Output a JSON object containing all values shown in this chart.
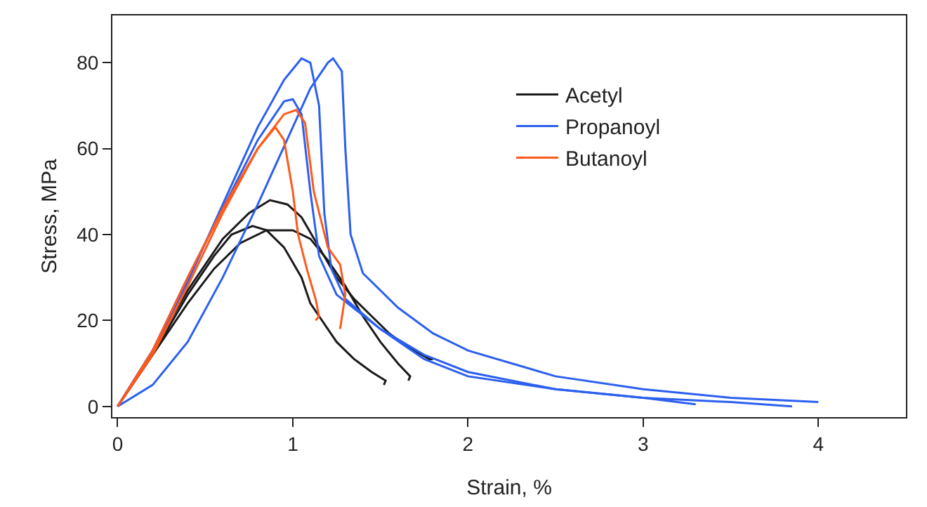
{
  "chart_data": {
    "type": "line",
    "xlabel": "Strain, %",
    "ylabel": "Stress, MPa",
    "xlim": [
      -0.03,
      4.5
    ],
    "ylim": [
      -2.5,
      91
    ],
    "xticks": [
      0,
      1,
      2,
      3,
      4
    ],
    "yticks": [
      0,
      20,
      40,
      60,
      80
    ],
    "grid": false,
    "legend": "top",
    "line_style": "solid",
    "marker": "none",
    "series": [
      {
        "name": "Acetyl",
        "color": "#1a1a1a",
        "x": [
          0,
          0.2,
          0.4,
          0.6,
          0.75,
          0.87,
          0.97,
          1.05,
          1.15,
          1.25,
          1.35,
          1.45,
          1.55,
          1.65,
          1.78,
          1.8
        ],
        "values": [
          0,
          13,
          27,
          39,
          45,
          48,
          47,
          44,
          37,
          30,
          25,
          21,
          17,
          14,
          11,
          11
        ]
      },
      {
        "color": "#1a1a1a",
        "x": [
          0,
          0.2,
          0.4,
          0.55,
          0.65,
          0.77,
          0.85,
          0.95,
          1.05,
          1.1,
          1.15,
          1.25,
          1.35,
          1.45,
          1.53,
          1.52
        ],
        "values": [
          0,
          12,
          26,
          35,
          40,
          42,
          41,
          37,
          30,
          24,
          21,
          15,
          11,
          8,
          6,
          5
        ]
      },
      {
        "color": "#1a1a1a",
        "x": [
          0,
          0.2,
          0.4,
          0.55,
          0.7,
          0.85,
          1.0,
          1.1,
          1.2,
          1.3,
          1.4,
          1.5,
          1.6,
          1.67,
          1.66
        ],
        "values": [
          0,
          12,
          24,
          32,
          38,
          41,
          41,
          39,
          34,
          28,
          21,
          15,
          10,
          7,
          6
        ]
      },
      {
        "name": "Propanoyl",
        "color": "#2b5ff0",
        "x": [
          0,
          0.2,
          0.4,
          0.6,
          0.8,
          0.95,
          1.05,
          1.1,
          1.15,
          1.18,
          1.22,
          1.3,
          1.5,
          1.75,
          2.0,
          2.5,
          3.0,
          3.5,
          3.85
        ],
        "values": [
          0,
          13,
          29,
          47,
          65,
          76,
          81,
          80,
          70,
          45,
          32,
          25,
          18,
          12,
          8,
          4,
          2,
          1,
          0
        ]
      },
      {
        "color": "#2b5ff0",
        "x": [
          0,
          0.2,
          0.4,
          0.6,
          0.8,
          1.0,
          1.1,
          1.2,
          1.23,
          1.28,
          1.3,
          1.33,
          1.4,
          1.6,
          1.8,
          2.0,
          2.5,
          3.0,
          3.5,
          4.0
        ],
        "values": [
          0,
          5,
          15,
          30,
          47,
          65,
          74,
          80,
          81,
          78,
          60,
          40,
          31,
          23,
          17,
          13,
          7,
          4,
          2,
          1
        ]
      },
      {
        "color": "#2b5ff0",
        "x": [
          0,
          0.2,
          0.4,
          0.6,
          0.8,
          0.95,
          1.0,
          1.05,
          1.1,
          1.15,
          1.25,
          1.5,
          1.75,
          2.0,
          2.5,
          3.0,
          3.3
        ],
        "values": [
          0,
          13,
          30,
          46,
          62,
          71,
          71.5,
          68,
          50,
          35,
          26,
          18,
          11,
          7,
          4,
          2,
          0.5
        ]
      },
      {
        "name": "Butanoyl",
        "color": "#ff5a1a",
        "x": [
          0,
          0.2,
          0.4,
          0.6,
          0.8,
          0.9,
          0.95,
          1.0,
          1.03,
          1.08,
          1.13,
          1.15,
          1.13
        ],
        "values": [
          0,
          13,
          30,
          46,
          60,
          65,
          62,
          50,
          40,
          32,
          25,
          21,
          20
        ]
      },
      {
        "color": "#ff5a1a",
        "x": [
          0,
          0.2,
          0.4,
          0.6,
          0.8,
          0.95,
          1.02,
          1.07,
          1.12,
          1.2,
          1.27,
          1.3,
          1.27
        ],
        "values": [
          0,
          12,
          28,
          45,
          60,
          68,
          69,
          66,
          50,
          37,
          33,
          26,
          18
        ]
      }
    ]
  }
}
